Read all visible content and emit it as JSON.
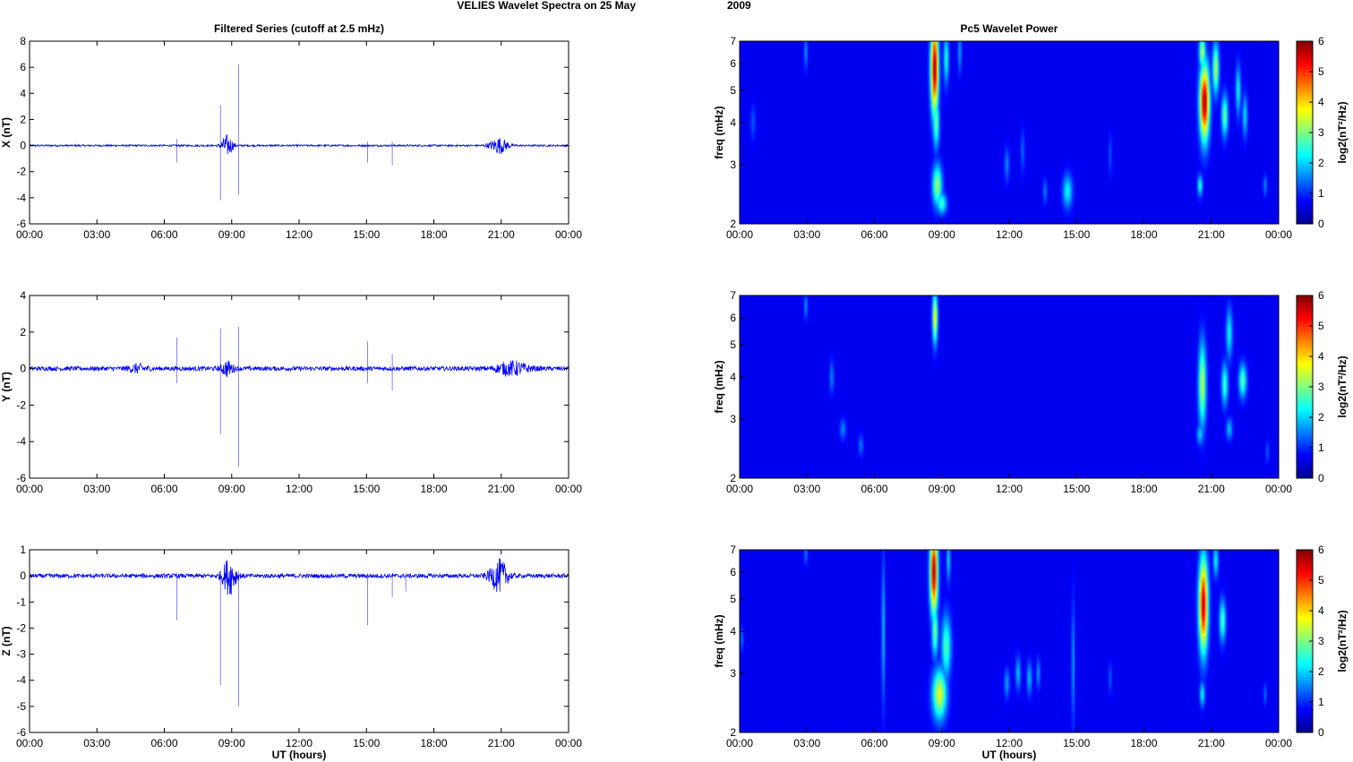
{
  "figure": {
    "title_part1": "VELIES Wavelet Spectra on 25 May",
    "title_part2": "2009",
    "left_title": "Filtered Series (cutoff at 2.5 mHz)",
    "right_title": "Pc5 Wavelet Power",
    "xlabel": "UT (hours)"
  },
  "colors": {
    "trace": "#0000ff",
    "colormap_low": "#00008f",
    "colormap_mid": "#7fff7f",
    "colormap_high": "#7f0000"
  },
  "chart_data": [
    {
      "type": "line",
      "panel": "X",
      "title": "Filtered Series (cutoff at 2.5 mHz)",
      "ylabel": "X (nT)",
      "xlabel": "",
      "xlim_hours": [
        0,
        24
      ],
      "xticks": [
        "00:00",
        "03:00",
        "06:00",
        "09:00",
        "12:00",
        "15:00",
        "18:00",
        "21:00",
        "00:00"
      ],
      "ylim": [
        -6,
        8
      ],
      "yticks": [
        -6,
        -4,
        -2,
        0,
        2,
        4,
        6,
        8
      ],
      "baseline_noise_amplitude": 0.07,
      "wave_packets": [
        {
          "center_hour": 8.8,
          "width_hours": 0.25,
          "amplitude": 0.8
        },
        {
          "center_hour": 20.9,
          "width_hours": 0.4,
          "amplitude": 0.6
        }
      ],
      "spikes": [
        {
          "hour": 6.55,
          "min": -1.3,
          "max": 0.5
        },
        {
          "hour": 8.5,
          "min": -4.2,
          "max": 3.1
        },
        {
          "hour": 9.3,
          "min": -3.8,
          "max": 6.2
        },
        {
          "hour": 15.05,
          "min": -1.3,
          "max": 0.3
        },
        {
          "hour": 16.15,
          "min": -1.5,
          "max": 0.3
        }
      ]
    },
    {
      "type": "line",
      "panel": "Y",
      "ylabel": "Y (nT)",
      "xlabel": "",
      "xlim_hours": [
        0,
        24
      ],
      "xticks": [
        "00:00",
        "03:00",
        "06:00",
        "09:00",
        "12:00",
        "15:00",
        "18:00",
        "21:00",
        "00:00"
      ],
      "ylim": [
        -6,
        4
      ],
      "yticks": [
        -6,
        -4,
        -2,
        0,
        2,
        4
      ],
      "baseline_noise_amplitude": 0.12,
      "wave_packets": [
        {
          "center_hour": 4.8,
          "width_hours": 0.4,
          "amplitude": 0.2
        },
        {
          "center_hour": 8.8,
          "width_hours": 0.25,
          "amplitude": 0.4
        },
        {
          "center_hour": 21.5,
          "width_hours": 0.7,
          "amplitude": 0.35
        }
      ],
      "spikes": [
        {
          "hour": 6.55,
          "min": -0.8,
          "max": 1.7
        },
        {
          "hour": 8.5,
          "min": -3.6,
          "max": 2.2
        },
        {
          "hour": 9.3,
          "min": -5.4,
          "max": 2.3
        },
        {
          "hour": 15.05,
          "min": -0.8,
          "max": 1.5
        },
        {
          "hour": 16.15,
          "min": -1.2,
          "max": 0.8
        }
      ]
    },
    {
      "type": "line",
      "panel": "Z",
      "ylabel": "Z (nT)",
      "xlabel": "UT (hours)",
      "xlim_hours": [
        0,
        24
      ],
      "xticks": [
        "00:00",
        "03:00",
        "06:00",
        "09:00",
        "12:00",
        "15:00",
        "18:00",
        "21:00",
        "00:00"
      ],
      "ylim": [
        -6,
        1
      ],
      "yticks": [
        -6,
        -5,
        -4,
        -3,
        -2,
        -1,
        0,
        1
      ],
      "baseline_noise_amplitude": 0.08,
      "wave_packets": [
        {
          "center_hour": 8.9,
          "width_hours": 0.3,
          "amplitude": 0.7
        },
        {
          "center_hour": 20.9,
          "width_hours": 0.4,
          "amplitude": 0.6
        }
      ],
      "spikes": [
        {
          "hour": 6.55,
          "min": -1.7,
          "max": 0.1
        },
        {
          "hour": 8.5,
          "min": -4.2,
          "max": 0.2
        },
        {
          "hour": 9.3,
          "min": -5.0,
          "max": 0.2
        },
        {
          "hour": 15.05,
          "min": -1.9,
          "max": 0.1
        },
        {
          "hour": 16.15,
          "min": -0.8,
          "max": 0.1
        },
        {
          "hour": 16.75,
          "min": -0.6,
          "max": 0.1
        }
      ]
    },
    {
      "type": "heatmap",
      "panel": "X",
      "title": "Pc5 Wavelet Power",
      "ylabel": "freq (mHz)",
      "xlabel": "",
      "xlim_hours": [
        0,
        24
      ],
      "xticks": [
        "00:00",
        "03:00",
        "06:00",
        "09:00",
        "12:00",
        "15:00",
        "18:00",
        "21:00",
        "00:00"
      ],
      "ylim_mhz": [
        2,
        7
      ],
      "yscale": "log",
      "yticks": [
        2,
        3,
        4,
        5,
        6,
        7
      ],
      "colorbar_label": "log2(nT²/Hz)",
      "colorbar_range": [
        0,
        6
      ],
      "colorbar_ticks": [
        0,
        1,
        2,
        3,
        4,
        5,
        6
      ],
      "blobs": [
        {
          "hour": 2.95,
          "freq": 6.5,
          "sigma_h": 0.05,
          "sigma_logf": 0.08,
          "value": 1.2
        },
        {
          "hour": 0.6,
          "freq": 4.0,
          "sigma_h": 0.08,
          "sigma_logf": 0.08,
          "value": 0.7
        },
        {
          "hour": 8.68,
          "freq": 5.8,
          "sigma_h": 0.12,
          "sigma_logf": 0.22,
          "value": 5.8
        },
        {
          "hour": 8.75,
          "freq": 4.0,
          "sigma_h": 0.1,
          "sigma_logf": 0.12,
          "value": 2.5
        },
        {
          "hour": 8.8,
          "freq": 2.6,
          "sigma_h": 0.15,
          "sigma_logf": 0.1,
          "value": 2.8
        },
        {
          "hour": 9.0,
          "freq": 2.3,
          "sigma_h": 0.15,
          "sigma_logf": 0.05,
          "value": 2.2
        },
        {
          "hour": 9.2,
          "freq": 6.2,
          "sigma_h": 0.08,
          "sigma_logf": 0.12,
          "value": 2.0
        },
        {
          "hour": 9.8,
          "freq": 6.5,
          "sigma_h": 0.06,
          "sigma_logf": 0.1,
          "value": 1.2
        },
        {
          "hour": 11.9,
          "freq": 3.0,
          "sigma_h": 0.08,
          "sigma_logf": 0.08,
          "value": 1.0
        },
        {
          "hour": 12.6,
          "freq": 3.3,
          "sigma_h": 0.07,
          "sigma_logf": 0.1,
          "value": 0.8
        },
        {
          "hour": 13.6,
          "freq": 2.5,
          "sigma_h": 0.07,
          "sigma_logf": 0.06,
          "value": 0.9
        },
        {
          "hour": 14.6,
          "freq": 2.5,
          "sigma_h": 0.15,
          "sigma_logf": 0.08,
          "value": 1.8
        },
        {
          "hour": 16.5,
          "freq": 3.2,
          "sigma_h": 0.05,
          "sigma_logf": 0.1,
          "value": 0.7
        },
        {
          "hour": 20.6,
          "freq": 6.5,
          "sigma_h": 0.1,
          "sigma_logf": 0.08,
          "value": 3.0
        },
        {
          "hour": 20.7,
          "freq": 4.6,
          "sigma_h": 0.15,
          "sigma_logf": 0.18,
          "value": 5.8
        },
        {
          "hour": 20.5,
          "freq": 2.6,
          "sigma_h": 0.08,
          "sigma_logf": 0.05,
          "value": 2.0
        },
        {
          "hour": 21.2,
          "freq": 5.8,
          "sigma_h": 0.1,
          "sigma_logf": 0.12,
          "value": 3.0
        },
        {
          "hour": 21.6,
          "freq": 4.2,
          "sigma_h": 0.1,
          "sigma_logf": 0.1,
          "value": 2.5
        },
        {
          "hour": 22.2,
          "freq": 5.0,
          "sigma_h": 0.08,
          "sigma_logf": 0.12,
          "value": 1.8
        },
        {
          "hour": 22.5,
          "freq": 4.2,
          "sigma_h": 0.08,
          "sigma_logf": 0.1,
          "value": 1.6
        },
        {
          "hour": 23.4,
          "freq": 2.6,
          "sigma_h": 0.06,
          "sigma_logf": 0.05,
          "value": 1.0
        }
      ]
    },
    {
      "type": "heatmap",
      "panel": "Y",
      "ylabel": "freq (mHz)",
      "xlabel": "",
      "xlim_hours": [
        0,
        24
      ],
      "xticks": [
        "00:00",
        "03:00",
        "06:00",
        "09:00",
        "12:00",
        "15:00",
        "18:00",
        "21:00",
        "00:00"
      ],
      "ylim_mhz": [
        2,
        7
      ],
      "yscale": "log",
      "yticks": [
        2,
        3,
        4,
        5,
        6,
        7
      ],
      "colorbar_label": "log2(nT²/Hz)",
      "colorbar_range": [
        0,
        6
      ],
      "colorbar_ticks": [
        0,
        1,
        2,
        3,
        4,
        5,
        6
      ],
      "blobs": [
        {
          "hour": 2.95,
          "freq": 6.5,
          "sigma_h": 0.05,
          "sigma_logf": 0.06,
          "value": 1.2
        },
        {
          "hour": 4.1,
          "freq": 4.0,
          "sigma_h": 0.07,
          "sigma_logf": 0.08,
          "value": 1.0
        },
        {
          "hour": 4.6,
          "freq": 2.8,
          "sigma_h": 0.1,
          "sigma_logf": 0.05,
          "value": 1.0
        },
        {
          "hour": 5.4,
          "freq": 2.5,
          "sigma_h": 0.08,
          "sigma_logf": 0.05,
          "value": 0.9
        },
        {
          "hour": 8.7,
          "freq": 6.0,
          "sigma_h": 0.08,
          "sigma_logf": 0.12,
          "value": 3.6
        },
        {
          "hour": 20.6,
          "freq": 3.8,
          "sigma_h": 0.12,
          "sigma_logf": 0.2,
          "value": 3.0
        },
        {
          "hour": 20.5,
          "freq": 2.7,
          "sigma_h": 0.1,
          "sigma_logf": 0.05,
          "value": 1.5
        },
        {
          "hour": 21.6,
          "freq": 3.8,
          "sigma_h": 0.1,
          "sigma_logf": 0.1,
          "value": 2.2
        },
        {
          "hour": 21.8,
          "freq": 5.4,
          "sigma_h": 0.1,
          "sigma_logf": 0.12,
          "value": 1.8
        },
        {
          "hour": 21.8,
          "freq": 2.8,
          "sigma_h": 0.1,
          "sigma_logf": 0.05,
          "value": 1.4
        },
        {
          "hour": 22.4,
          "freq": 3.9,
          "sigma_h": 0.12,
          "sigma_logf": 0.08,
          "value": 2.4
        },
        {
          "hour": 23.5,
          "freq": 2.4,
          "sigma_h": 0.05,
          "sigma_logf": 0.05,
          "value": 0.8
        }
      ]
    },
    {
      "type": "heatmap",
      "panel": "Z",
      "ylabel": "freq (mHz)",
      "xlabel": "UT (hours)",
      "xlim_hours": [
        0,
        24
      ],
      "xticks": [
        "00:00",
        "03:00",
        "06:00",
        "09:00",
        "12:00",
        "15:00",
        "18:00",
        "21:00",
        "00:00"
      ],
      "ylim_mhz": [
        2,
        7
      ],
      "yscale": "log",
      "yticks": [
        2,
        3,
        4,
        5,
        6,
        7
      ],
      "colorbar_label": "log2(nT²/Hz)",
      "colorbar_range": [
        0,
        6
      ],
      "colorbar_ticks": [
        0,
        1,
        2,
        3,
        4,
        5,
        6
      ],
      "blobs": [
        {
          "hour": 0.1,
          "freq": 3.8,
          "sigma_h": 0.06,
          "sigma_logf": 0.06,
          "value": 0.8
        },
        {
          "hour": 2.95,
          "freq": 6.8,
          "sigma_h": 0.05,
          "sigma_logf": 0.05,
          "value": 1.0
        },
        {
          "hour": 6.4,
          "freq": 4.0,
          "sigma_h": 0.05,
          "sigma_logf": 0.35,
          "value": 1.5
        },
        {
          "hour": 8.65,
          "freq": 6.0,
          "sigma_h": 0.12,
          "sigma_logf": 0.2,
          "value": 5.8
        },
        {
          "hour": 8.7,
          "freq": 4.0,
          "sigma_h": 0.1,
          "sigma_logf": 0.12,
          "value": 2.6
        },
        {
          "hour": 8.9,
          "freq": 2.6,
          "sigma_h": 0.22,
          "sigma_logf": 0.12,
          "value": 3.3
        },
        {
          "hour": 9.2,
          "freq": 3.6,
          "sigma_h": 0.15,
          "sigma_logf": 0.15,
          "value": 2.3
        },
        {
          "hour": 9.3,
          "freq": 6.5,
          "sigma_h": 0.06,
          "sigma_logf": 0.1,
          "value": 1.6
        },
        {
          "hour": 11.9,
          "freq": 2.8,
          "sigma_h": 0.08,
          "sigma_logf": 0.07,
          "value": 1.2
        },
        {
          "hour": 12.4,
          "freq": 3.0,
          "sigma_h": 0.08,
          "sigma_logf": 0.08,
          "value": 1.4
        },
        {
          "hour": 12.9,
          "freq": 2.9,
          "sigma_h": 0.08,
          "sigma_logf": 0.08,
          "value": 1.4
        },
        {
          "hour": 13.3,
          "freq": 3.0,
          "sigma_h": 0.06,
          "sigma_logf": 0.07,
          "value": 1.2
        },
        {
          "hour": 14.85,
          "freq": 3.2,
          "sigma_h": 0.05,
          "sigma_logf": 0.3,
          "value": 1.2
        },
        {
          "hour": 16.5,
          "freq": 2.9,
          "sigma_h": 0.05,
          "sigma_logf": 0.07,
          "value": 0.8
        },
        {
          "hour": 20.65,
          "freq": 4.8,
          "sigma_h": 0.14,
          "sigma_logf": 0.22,
          "value": 5.6
        },
        {
          "hour": 20.6,
          "freq": 2.6,
          "sigma_h": 0.08,
          "sigma_logf": 0.06,
          "value": 1.8
        },
        {
          "hour": 21.2,
          "freq": 6.5,
          "sigma_h": 0.08,
          "sigma_logf": 0.08,
          "value": 1.8
        },
        {
          "hour": 21.5,
          "freq": 4.3,
          "sigma_h": 0.1,
          "sigma_logf": 0.1,
          "value": 2.3
        },
        {
          "hour": 23.4,
          "freq": 2.6,
          "sigma_h": 0.05,
          "sigma_logf": 0.05,
          "value": 0.9
        }
      ]
    }
  ]
}
